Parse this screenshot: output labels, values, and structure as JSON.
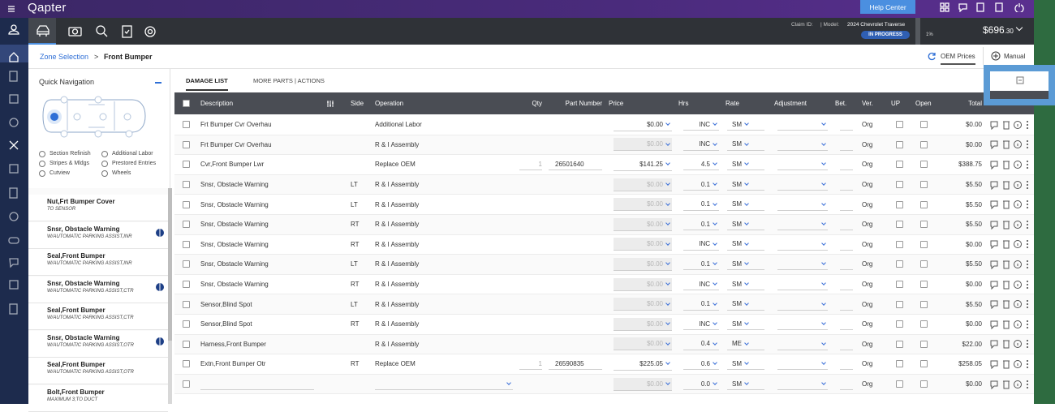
{
  "header": {
    "logo": "Qapter",
    "help": "Help Center",
    "claim_id_label": "Claim ID:",
    "model_label": "| Model:",
    "model": "2024 Chevrolet Traverse",
    "status": "IN PROGRESS",
    "progress": "1%",
    "total": "$696",
    "total_cents": ".30"
  },
  "breadcrumb": {
    "parent": "Zone Selection",
    "separator": ">",
    "current": "Front Bumper"
  },
  "toolbar": {
    "oem_prices": "OEM Prices",
    "manual": "Manual"
  },
  "quick_nav": {
    "title": "Quick Navigation",
    "options": [
      "Section Refinish",
      "Additional Labor",
      "Stripes & Mldgs",
      "Prestored Entries",
      "Cutview",
      "Wheels"
    ]
  },
  "parts": [
    {
      "name": "Nut,Frt Bumper Cover",
      "note": "TO SENSOR"
    },
    {
      "name": "Snsr, Obstacle Warning",
      "note": "W/AUTOMATIC PARKING ASSIST,INR",
      "icon": true
    },
    {
      "name": "Seal,Front Bumper",
      "note": "W/AUTOMATIC PARKING ASSIST,INR"
    },
    {
      "name": "Snsr, Obstacle Warning",
      "note": "W/AUTOMATIC PARKING ASSIST,CTR",
      "icon": true
    },
    {
      "name": "Seal,Front Bumper",
      "note": "W/AUTOMATIC PARKING ASSIST,CTR"
    },
    {
      "name": "Snsr, Obstacle Warning",
      "note": "W/AUTOMATIC PARKING ASSIST,OTR",
      "icon": true
    },
    {
      "name": "Seal,Front Bumper",
      "note": "W/AUTOMATIC PARKING ASSIST,OTR"
    },
    {
      "name": "Bolt,Front Bumper",
      "note": "MAXIMUM 3;TO DUCT"
    }
  ],
  "tabs": [
    "DAMAGE LIST",
    "MORE PARTS | ACTIONS"
  ],
  "table": {
    "columns": {
      "description": "Description",
      "side": "Side",
      "operation": "Operation",
      "qty": "Qty",
      "part_number": "Part Number",
      "price": "Price",
      "hrs": "Hrs",
      "rate": "Rate",
      "adjustment": "Adjustment",
      "bet": "Bet.",
      "ver": "Ver.",
      "up": "UP",
      "open": "Open",
      "total": "Total"
    },
    "rows": [
      {
        "description": "Frt Bumper Cvr Overhau",
        "operation": "Additional Labor",
        "price": "$0.00",
        "hrs": "INC",
        "rate": "SM",
        "ver": "Org",
        "total": "$0.00"
      },
      {
        "description": "Frt Bumper Cvr Overhau",
        "operation": "R & I Assembly",
        "price": "$0.00",
        "locked": true,
        "hrs": "INC",
        "rate": "SM",
        "ver": "Org",
        "total": "$0.00"
      },
      {
        "description": "Cvr,Front Bumper Lwr",
        "operation": "Replace OEM",
        "qty": "1",
        "part_number": "26501640",
        "price": "$141.25",
        "hrs": "4.5",
        "rate": "SM",
        "ver": "Org",
        "total": "$388.75"
      },
      {
        "description": "Snsr, Obstacle Warning",
        "side": "LT",
        "operation": "R & I Assembly",
        "price": "$0.00",
        "locked": true,
        "hrs": "0.1",
        "rate": "SM",
        "ver": "Org",
        "total": "$5.50"
      },
      {
        "description": "Snsr, Obstacle Warning",
        "side": "LT",
        "operation": "R & I Assembly",
        "price": "$0.00",
        "locked": true,
        "hrs": "0.1",
        "rate": "SM",
        "ver": "Org",
        "total": "$5.50"
      },
      {
        "description": "Snsr, Obstacle Warning",
        "side": "RT",
        "operation": "R & I Assembly",
        "price": "$0.00",
        "locked": true,
        "hrs": "0.1",
        "rate": "SM",
        "ver": "Org",
        "total": "$5.50"
      },
      {
        "description": "Snsr, Obstacle Warning",
        "side": "RT",
        "operation": "R & I Assembly",
        "price": "$0.00",
        "locked": true,
        "hrs": "INC",
        "rate": "SM",
        "ver": "Org",
        "total": "$0.00"
      },
      {
        "description": "Snsr, Obstacle Warning",
        "side": "LT",
        "operation": "R & I Assembly",
        "price": "$0.00",
        "locked": true,
        "hrs": "0.1",
        "rate": "SM",
        "ver": "Org",
        "total": "$5.50"
      },
      {
        "description": "Snsr, Obstacle Warning",
        "side": "RT",
        "operation": "R & I Assembly",
        "price": "$0.00",
        "locked": true,
        "hrs": "INC",
        "rate": "SM",
        "ver": "Org",
        "total": "$0.00"
      },
      {
        "description": "Sensor,Blind Spot",
        "side": "LT",
        "operation": "R & I Assembly",
        "price": "$0.00",
        "locked": true,
        "hrs": "0.1",
        "rate": "SM",
        "ver": "Org",
        "total": "$5.50"
      },
      {
        "description": "Sensor,Blind Spot",
        "side": "RT",
        "operation": "R & I Assembly",
        "price": "$0.00",
        "locked": true,
        "hrs": "INC",
        "rate": "SM",
        "ver": "Org",
        "total": "$0.00"
      },
      {
        "description": "Harness,Front Bumper",
        "operation": "R & I Assembly",
        "price": "$0.00",
        "locked": true,
        "hrs": "0.4",
        "rate": "ME",
        "ver": "Org",
        "total": "$22.00"
      },
      {
        "description": "Extn,Front Bumper Otr",
        "side": "RT",
        "operation": "Replace OEM",
        "qty": "1",
        "part_number": "26590835",
        "price": "$225.05",
        "hrs": "0.6",
        "rate": "SM",
        "ver": "Org",
        "total": "$258.05"
      },
      {
        "price": "$0.00",
        "locked": true,
        "hrs": "0.0",
        "rate": "SM",
        "ver": "Org",
        "total": "$0.00"
      }
    ]
  }
}
